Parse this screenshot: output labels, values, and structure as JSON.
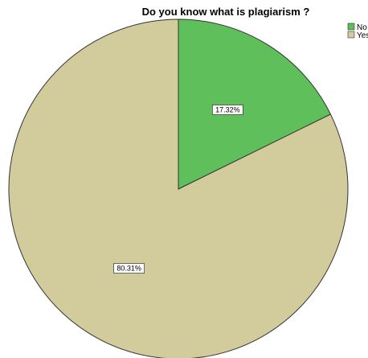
{
  "chart_data": {
    "type": "pie",
    "title": "Do you know what is plagiarism ?",
    "categories": [
      "No",
      "Yes"
    ],
    "values": [
      17.32,
      80.31
    ],
    "value_labels": [
      "17.32%",
      "80.31%"
    ],
    "colors": [
      "#5fbf5a",
      "#d2cc9c"
    ],
    "legend": {
      "placement": "top-right",
      "entries": [
        "No",
        "Yes"
      ]
    },
    "start_angle_deg": 0,
    "direction": "clockwise"
  }
}
